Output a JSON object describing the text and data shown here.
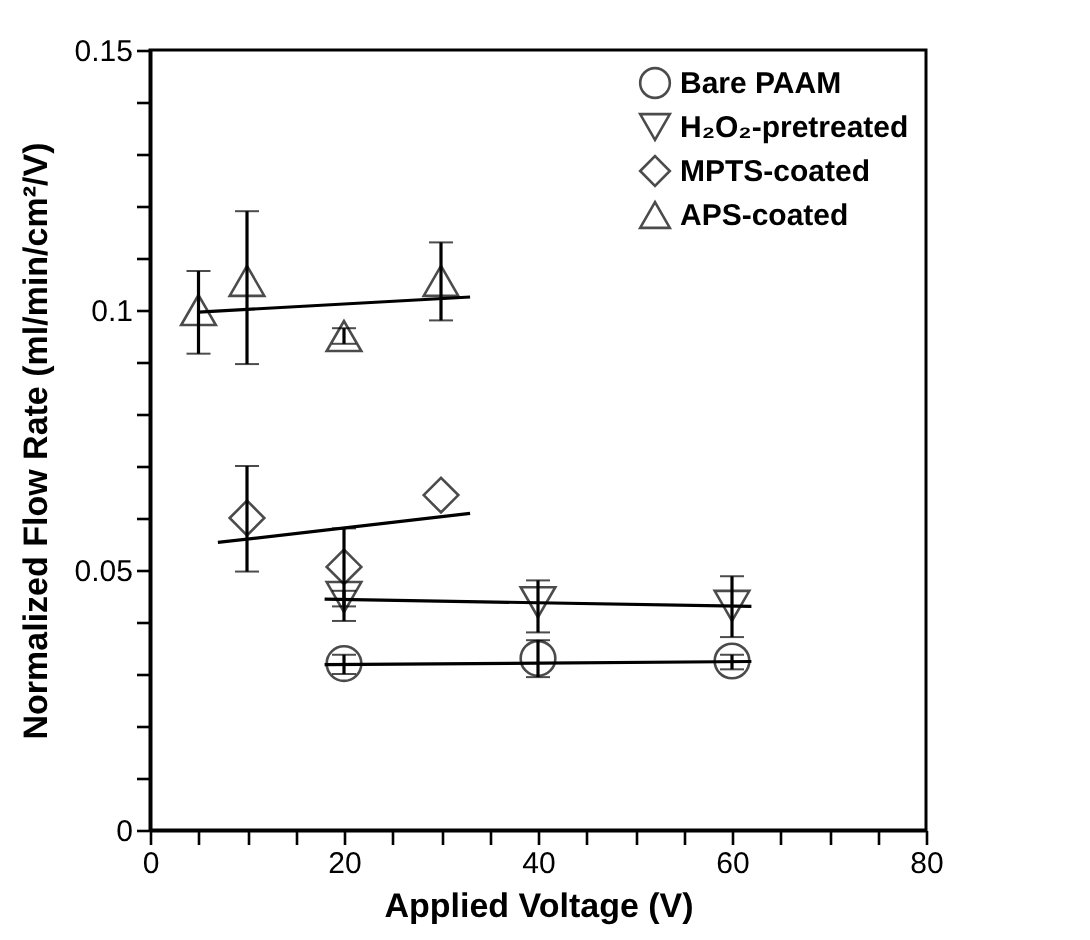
{
  "chart_data": {
    "type": "scatter",
    "xlabel": "Applied Voltage (V)",
    "ylabel": "Normalized Flow Rate (ml/min/cm²/V)",
    "xlim": [
      0,
      80
    ],
    "ylim": [
      0,
      0.15
    ],
    "xticks": [
      0,
      {
        "value": 5,
        "label": null
      },
      {
        "value": 10,
        "label": null
      },
      {
        "value": 15,
        "label": null
      },
      20,
      {
        "value": 25,
        "label": null
      },
      {
        "value": 30,
        "label": null
      },
      {
        "value": 35,
        "label": null
      },
      40,
      {
        "value": 45,
        "label": null
      },
      {
        "value": 50,
        "label": null
      },
      {
        "value": 55,
        "label": null
      },
      60,
      {
        "value": 65,
        "label": null
      },
      {
        "value": 70,
        "label": null
      },
      {
        "value": 75,
        "label": null
      },
      80
    ],
    "yticks": [
      0,
      {
        "value": 0.01,
        "label": null
      },
      {
        "value": 0.02,
        "label": null
      },
      {
        "value": 0.03,
        "label": null
      },
      {
        "value": 0.04,
        "label": null
      },
      0.05,
      {
        "value": 0.06,
        "label": null
      },
      {
        "value": 0.07,
        "label": null
      },
      {
        "value": 0.08,
        "label": null
      },
      {
        "value": 0.09,
        "label": null
      },
      0.1,
      {
        "value": 0.11,
        "label": null
      },
      {
        "value": 0.12,
        "label": null
      },
      {
        "value": 0.13,
        "label": null
      },
      {
        "value": 0.14,
        "label": null
      },
      0.15
    ],
    "grid": false,
    "legend": "top right",
    "series": [
      {
        "name": "Bare PAAM",
        "marker": "circle",
        "color": "#000000",
        "x": [
          20,
          40,
          60
        ],
        "values": [
          0.032,
          0.033,
          0.0325
        ],
        "errors": [
          [
            0.03,
            0.0337
          ],
          [
            0.0294,
            0.0365
          ],
          [
            0.0309,
            0.0337
          ]
        ]
      },
      {
        "name": "H₂O₂-pretreated",
        "marker": "triangle-down",
        "color": "#000000",
        "x": [
          20,
          40,
          60
        ],
        "values": [
          0.0448,
          0.0438,
          0.0431
        ],
        "errors": [
          [
            0.0402,
            0.046
          ],
          [
            0.038,
            0.048
          ],
          [
            0.0371,
            0.0488
          ]
        ]
      },
      {
        "name": "MPTS-coated",
        "marker": "diamond",
        "color": "#000000",
        "x": [
          10,
          20,
          30
        ],
        "values": [
          0.06,
          0.0506,
          0.0644
        ],
        "errors": [
          [
            0.0497,
            0.07
          ],
          [
            0.043,
            0.058
          ],
          null
        ]
      },
      {
        "name": "APS-coated",
        "marker": "triangle",
        "color": "#000000",
        "x": [
          5,
          10,
          20,
          30
        ],
        "values": [
          0.1,
          0.1056,
          0.095,
          0.1056
        ],
        "errors": [
          [
            0.0916,
            0.1075
          ],
          [
            0.0896,
            0.119
          ],
          [
            0.0935,
            0.0965
          ],
          [
            0.098,
            0.113
          ]
        ]
      },
      {
        "type": "line",
        "color": "#000000",
        "x": [
          18,
          62
        ],
        "values": [
          0.0318,
          0.0324
        ]
      },
      {
        "type": "line",
        "color": "#000000",
        "x": [
          18,
          62
        ],
        "values": [
          0.0444,
          0.043
        ]
      },
      {
        "type": "line",
        "color": "#000000",
        "x": [
          7,
          33
        ],
        "values": [
          0.0553,
          0.0609
        ]
      },
      {
        "type": "line",
        "color": "#000000",
        "x": [
          5,
          33
        ],
        "values": [
          0.0996,
          0.1025
        ]
      }
    ]
  }
}
